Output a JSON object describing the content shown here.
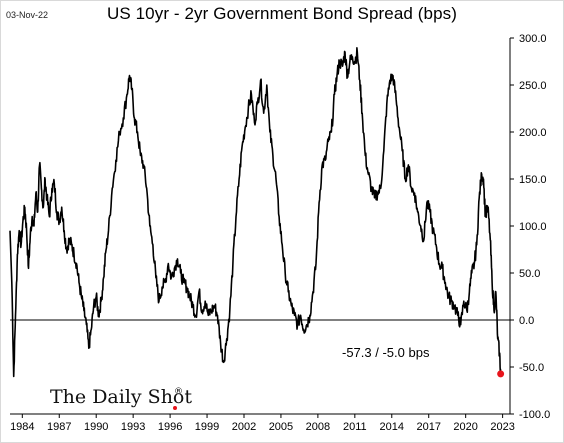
{
  "date_label": "03-Nov-22",
  "logo_text": "The Daily Shot",
  "logo_mark": "®",
  "chart_data": {
    "type": "line",
    "title": "US 10yr - 2yr Government Bond Spread (bps)",
    "xlabel": "",
    "ylabel": "",
    "xlim": [
      1983.0,
      2023.6
    ],
    "ylim": [
      -100,
      300
    ],
    "y_ticks": [
      300.0,
      250.0,
      200.0,
      150.0,
      100.0,
      50.0,
      0.0,
      -50.0,
      -100.0
    ],
    "y_tick_labels": [
      "300.0",
      "250.0",
      "200.0",
      "150.0",
      "100.0",
      "50.0",
      "0.0",
      "-50.0",
      "-100.0"
    ],
    "x_ticks": [
      1984,
      1987,
      1990,
      1993,
      1996,
      1999,
      2002,
      2005,
      2008,
      2011,
      2014,
      2017,
      2020,
      2023
    ],
    "x_tick_labels": [
      "1984",
      "1987",
      "1990",
      "1993",
      "1996",
      "1999",
      "2002",
      "2005",
      "2008",
      "2011",
      "2014",
      "2017",
      "2020",
      "2023"
    ],
    "grid": false,
    "reference_line": 0,
    "annotation": "-57.3  /  -5.0 bps",
    "line_color": "#000000",
    "endpoint_color": "#e8141b",
    "series": [
      {
        "name": "",
        "points": [
          [
            1983.0,
            95
          ],
          [
            1983.15,
            40
          ],
          [
            1983.3,
            -60
          ],
          [
            1983.45,
            5
          ],
          [
            1983.6,
            70
          ],
          [
            1983.75,
            95
          ],
          [
            1983.9,
            80
          ],
          [
            1984.05,
            105
          ],
          [
            1984.2,
            120
          ],
          [
            1984.35,
            95
          ],
          [
            1984.5,
            55
          ],
          [
            1984.65,
            90
          ],
          [
            1984.8,
            110
          ],
          [
            1984.95,
            100
          ],
          [
            1985.1,
            135
          ],
          [
            1985.25,
            115
          ],
          [
            1985.4,
            165
          ],
          [
            1985.55,
            140
          ],
          [
            1985.7,
            120
          ],
          [
            1985.85,
            150
          ],
          [
            1986.0,
            130
          ],
          [
            1986.2,
            110
          ],
          [
            1986.4,
            140
          ],
          [
            1986.6,
            145
          ],
          [
            1986.8,
            115
          ],
          [
            1987.0,
            105
          ],
          [
            1987.2,
            120
          ],
          [
            1987.4,
            95
          ],
          [
            1987.6,
            75
          ],
          [
            1987.8,
            85
          ],
          [
            1988.0,
            80
          ],
          [
            1988.2,
            70
          ],
          [
            1988.4,
            60
          ],
          [
            1988.6,
            40
          ],
          [
            1988.8,
            25
          ],
          [
            1989.0,
            10
          ],
          [
            1989.2,
            -5
          ],
          [
            1989.4,
            -30
          ],
          [
            1989.6,
            -10
          ],
          [
            1989.8,
            15
          ],
          [
            1990.0,
            25
          ],
          [
            1990.2,
            5
          ],
          [
            1990.4,
            20
          ],
          [
            1990.6,
            45
          ],
          [
            1990.8,
            75
          ],
          [
            1991.0,
            95
          ],
          [
            1991.3,
            140
          ],
          [
            1991.6,
            170
          ],
          [
            1991.9,
            200
          ],
          [
            1992.2,
            215
          ],
          [
            1992.5,
            240
          ],
          [
            1992.7,
            260
          ],
          [
            1992.9,
            245
          ],
          [
            1993.1,
            215
          ],
          [
            1993.35,
            200
          ],
          [
            1993.6,
            175
          ],
          [
            1993.85,
            165
          ],
          [
            1994.1,
            140
          ],
          [
            1994.35,
            100
          ],
          [
            1994.6,
            80
          ],
          [
            1994.85,
            45
          ],
          [
            1995.1,
            20
          ],
          [
            1995.35,
            35
          ],
          [
            1995.6,
            40
          ],
          [
            1995.85,
            60
          ],
          [
            1996.1,
            45
          ],
          [
            1996.35,
            55
          ],
          [
            1996.6,
            65
          ],
          [
            1996.85,
            50
          ],
          [
            1997.1,
            40
          ],
          [
            1997.35,
            35
          ],
          [
            1997.6,
            25
          ],
          [
            1997.85,
            15
          ],
          [
            1998.1,
            5
          ],
          [
            1998.35,
            30
          ],
          [
            1998.6,
            10
          ],
          [
            1998.85,
            20
          ],
          [
            1999.1,
            5
          ],
          [
            1999.35,
            10
          ],
          [
            1999.6,
            15
          ],
          [
            1999.85,
            5
          ],
          [
            2000.1,
            -25
          ],
          [
            2000.35,
            -45
          ],
          [
            2000.6,
            -20
          ],
          [
            2000.85,
            10
          ],
          [
            2001.1,
            60
          ],
          [
            2001.35,
            110
          ],
          [
            2001.6,
            150
          ],
          [
            2001.85,
            185
          ],
          [
            2002.1,
            205
          ],
          [
            2002.35,
            225
          ],
          [
            2002.6,
            240
          ],
          [
            2002.85,
            210
          ],
          [
            2003.1,
            230
          ],
          [
            2003.35,
            255
          ],
          [
            2003.6,
            220
          ],
          [
            2003.85,
            250
          ],
          [
            2004.1,
            200
          ],
          [
            2004.35,
            175
          ],
          [
            2004.6,
            150
          ],
          [
            2004.85,
            110
          ],
          [
            2005.1,
            80
          ],
          [
            2005.35,
            50
          ],
          [
            2005.6,
            30
          ],
          [
            2005.85,
            15
          ],
          [
            2006.1,
            5
          ],
          [
            2006.35,
            -5
          ],
          [
            2006.6,
            5
          ],
          [
            2006.85,
            -10
          ],
          [
            2007.1,
            -5
          ],
          [
            2007.35,
            5
          ],
          [
            2007.6,
            30
          ],
          [
            2007.85,
            60
          ],
          [
            2008.1,
            125
          ],
          [
            2008.35,
            165
          ],
          [
            2008.6,
            170
          ],
          [
            2008.85,
            190
          ],
          [
            2009.1,
            200
          ],
          [
            2009.35,
            240
          ],
          [
            2009.55,
            260
          ],
          [
            2009.75,
            275
          ],
          [
            2010.0,
            270
          ],
          [
            2010.2,
            285
          ],
          [
            2010.4,
            260
          ],
          [
            2010.6,
            275
          ],
          [
            2010.8,
            280
          ],
          [
            2011.0,
            275
          ],
          [
            2011.2,
            285
          ],
          [
            2011.4,
            255
          ],
          [
            2011.6,
            220
          ],
          [
            2011.85,
            175
          ],
          [
            2012.1,
            155
          ],
          [
            2012.35,
            140
          ],
          [
            2012.6,
            130
          ],
          [
            2012.85,
            135
          ],
          [
            2013.1,
            140
          ],
          [
            2013.35,
            180
          ],
          [
            2013.6,
            230
          ],
          [
            2013.85,
            255
          ],
          [
            2014.1,
            260
          ],
          [
            2014.35,
            235
          ],
          [
            2014.6,
            205
          ],
          [
            2014.85,
            180
          ],
          [
            2015.1,
            150
          ],
          [
            2015.35,
            165
          ],
          [
            2015.6,
            140
          ],
          [
            2015.85,
            135
          ],
          [
            2016.1,
            115
          ],
          [
            2016.35,
            100
          ],
          [
            2016.6,
            85
          ],
          [
            2016.85,
            125
          ],
          [
            2017.1,
            115
          ],
          [
            2017.35,
            95
          ],
          [
            2017.6,
            80
          ],
          [
            2017.85,
            60
          ],
          [
            2018.1,
            55
          ],
          [
            2018.35,
            40
          ],
          [
            2018.6,
            25
          ],
          [
            2018.85,
            20
          ],
          [
            2019.1,
            15
          ],
          [
            2019.35,
            5
          ],
          [
            2019.6,
            -5
          ],
          [
            2019.85,
            20
          ],
          [
            2020.1,
            10
          ],
          [
            2020.3,
            30
          ],
          [
            2020.5,
            50
          ],
          [
            2020.7,
            60
          ],
          [
            2020.9,
            80
          ],
          [
            2021.1,
            130
          ],
          [
            2021.3,
            155
          ],
          [
            2021.45,
            150
          ],
          [
            2021.6,
            110
          ],
          [
            2021.8,
            120
          ],
          [
            2022.0,
            85
          ],
          [
            2022.15,
            40
          ],
          [
            2022.3,
            10
          ],
          [
            2022.45,
            30
          ],
          [
            2022.6,
            -20
          ],
          [
            2022.75,
            -35
          ],
          [
            2022.84,
            -57.3
          ]
        ]
      }
    ]
  }
}
